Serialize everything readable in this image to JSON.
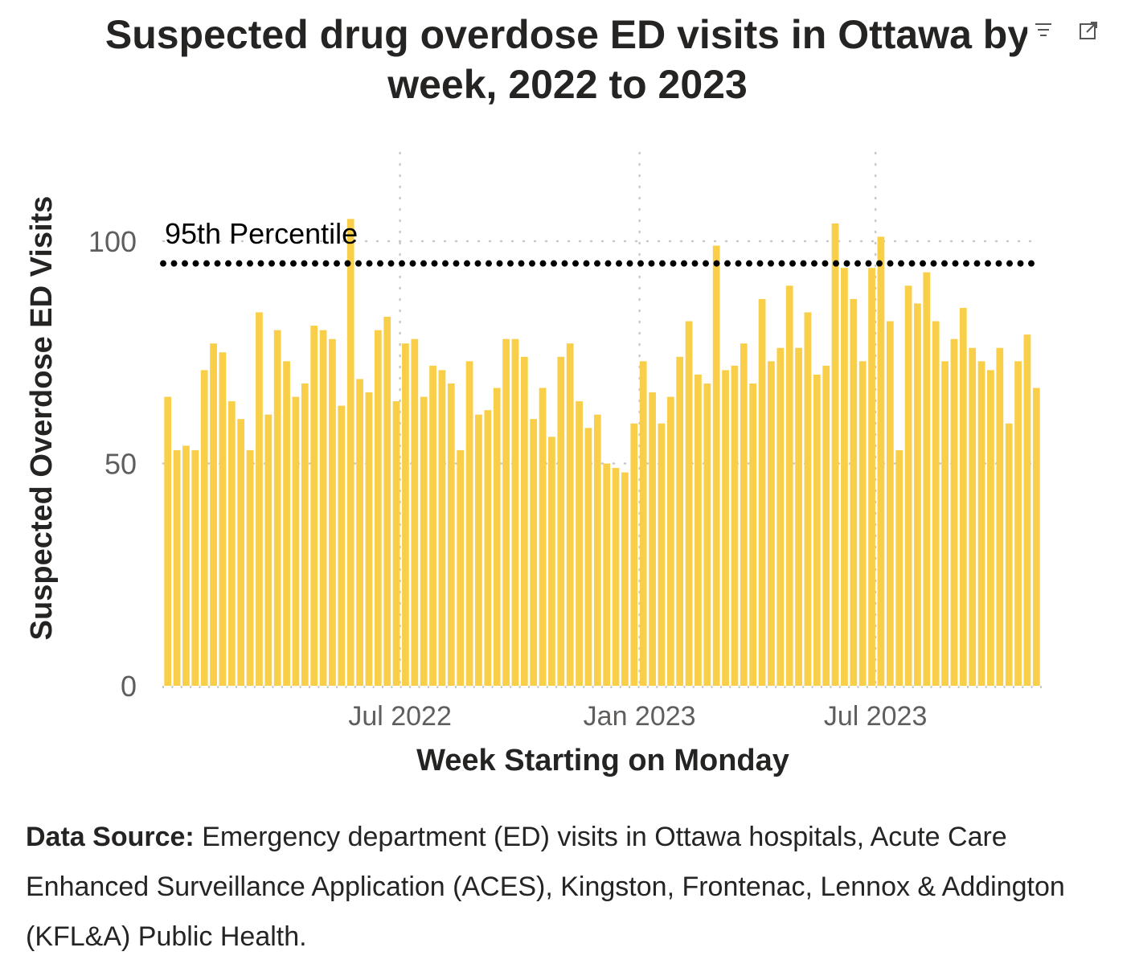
{
  "chart_data": {
    "type": "bar",
    "title_line1": "Suspected drug overdose ED visits in Ottawa by",
    "title_line2": "week, 2022 to 2023",
    "xlabel": "Week Starting on Monday",
    "ylabel": "Suspected Overdose ED Visits",
    "ylim": [
      0,
      120
    ],
    "yticks": [
      0,
      50,
      100
    ],
    "xtick_labels": [
      {
        "label": "Jul 2022",
        "week_index": 25.9
      },
      {
        "label": "Jan 2023",
        "week_index": 52.1
      },
      {
        "label": "Jul 2023",
        "week_index": 77.9
      }
    ],
    "bar_color": "#F9CF4A",
    "reference_line": {
      "label": "95th Percentile",
      "value": 95
    },
    "values": [
      65,
      53,
      54,
      53,
      71,
      77,
      75,
      64,
      60,
      53,
      84,
      61,
      80,
      73,
      65,
      68,
      81,
      80,
      78,
      63,
      105,
      69,
      66,
      80,
      83,
      64,
      77,
      78,
      65,
      72,
      71,
      68,
      53,
      73,
      61,
      62,
      67,
      78,
      78,
      74,
      60,
      67,
      56,
      74,
      77,
      64,
      58,
      61,
      50,
      49,
      48,
      59,
      73,
      66,
      59,
      65,
      74,
      82,
      70,
      68,
      99,
      71,
      72,
      77,
      68,
      87,
      73,
      76,
      90,
      76,
      84,
      70,
      72,
      104,
      94,
      87,
      73,
      94,
      101,
      82,
      53,
      90,
      86,
      93,
      82,
      73,
      78,
      85,
      76,
      73,
      71,
      76,
      59,
      73,
      79,
      67
    ]
  },
  "source": {
    "label": "Data Source:",
    "text": "Emergency department (ED) visits in Ottawa hospitals, Acute Care Enhanced Surveillance Application (ACES), Kingston, Frontenac, Lennox & Addington (KFL&A) Public Health."
  },
  "toolbar": {
    "filter_icon": "filter-lines-icon",
    "expand_icon": "focus-mode-icon"
  }
}
